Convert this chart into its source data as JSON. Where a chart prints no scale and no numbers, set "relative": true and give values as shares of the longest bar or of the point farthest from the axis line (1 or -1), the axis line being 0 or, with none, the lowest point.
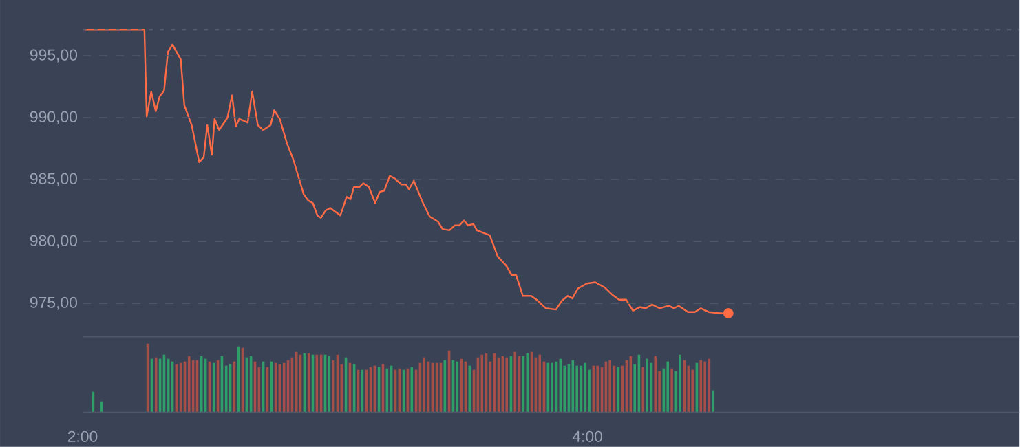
{
  "chart_data": [
    {
      "type": "line",
      "xlim": [
        2,
        5.711
      ],
      "ylim": [
        972.3,
        999.5
      ],
      "tick_labels": "y",
      "grid": "y",
      "yticks": [
        {
          "value": 975,
          "label": "975,00"
        },
        {
          "value": 980,
          "label": "980,00"
        },
        {
          "value": 985,
          "label": "985,00"
        },
        {
          "value": 990,
          "label": "990,00"
        },
        {
          "value": 995,
          "label": "995,00"
        }
      ],
      "ref_lines": [
        {
          "axis": "y",
          "value": 997.1,
          "color": "#5f6878",
          "line_style": "dotted"
        }
      ],
      "series": [
        {
          "color": "#ff6b45",
          "x": [
            2.009,
            2.245,
            2.254,
            2.272,
            2.29,
            2.305,
            2.323,
            2.338,
            2.356,
            2.389,
            2.403,
            2.432,
            2.462,
            2.48,
            2.494,
            2.512,
            2.523,
            2.541,
            2.574,
            2.592,
            2.607,
            2.621,
            2.654,
            2.672,
            2.694,
            2.716,
            2.745,
            2.759,
            2.781,
            2.81,
            2.835,
            2.876,
            2.894,
            2.912,
            2.93,
            2.944,
            2.963,
            2.981,
            3.021,
            3.046,
            3.061,
            3.075,
            3.097,
            3.112,
            3.134,
            3.159,
            3.177,
            3.195,
            3.217,
            3.235,
            3.263,
            3.281,
            3.293,
            3.312,
            3.344,
            3.375,
            3.408,
            3.426,
            3.453,
            3.475,
            3.493,
            3.511,
            3.526,
            3.548,
            3.562,
            3.613,
            3.644,
            3.68,
            3.699,
            3.717,
            3.744,
            3.777,
            3.798,
            3.835,
            3.875,
            3.898,
            3.922,
            3.94,
            3.962,
            3.998,
            4.031,
            4.067,
            4.098,
            4.125,
            4.153,
            4.18,
            4.207,
            4.231,
            4.256,
            4.285,
            4.322,
            4.343,
            4.361,
            4.398,
            4.425,
            4.449,
            4.48,
            4.525,
            4.558
          ],
          "values": [
            997.1,
            997.1,
            990.1,
            992.1,
            990.5,
            991.7,
            992.2,
            995.3,
            995.9,
            994.7,
            991.0,
            989.4,
            986.4,
            986.8,
            989.4,
            987.0,
            989.9,
            989.0,
            990.0,
            991.8,
            989.3,
            989.9,
            989.6,
            992.1,
            989.4,
            989.0,
            989.4,
            990.6,
            989.9,
            987.9,
            986.6,
            983.8,
            983.3,
            983.1,
            982.1,
            981.9,
            982.5,
            982.7,
            982.1,
            983.6,
            983.4,
            984.4,
            984.4,
            984.7,
            984.4,
            983.1,
            984.0,
            984.1,
            985.3,
            985.1,
            984.6,
            984.6,
            984.2,
            984.9,
            983.3,
            982.0,
            981.6,
            981.0,
            980.9,
            981.3,
            981.3,
            981.7,
            981.3,
            981.4,
            980.9,
            980.5,
            978.8,
            978.0,
            977.3,
            977.3,
            975.6,
            975.6,
            975.3,
            974.6,
            974.5,
            975.2,
            975.6,
            975.4,
            976.2,
            976.6,
            976.7,
            976.3,
            975.7,
            975.3,
            975.3,
            974.4,
            974.7,
            974.6,
            974.9,
            974.6,
            974.8,
            974.6,
            974.8,
            974.3,
            974.3,
            974.6,
            974.3,
            974.2,
            974.2
          ]
        },
        {
          "type": "scatter",
          "color": "#ff6b45",
          "x": [
            4.558
          ],
          "values": [
            974.2
          ]
        }
      ]
    },
    {
      "type": "bar",
      "relative": true,
      "xlim": [
        2,
        5.711
      ],
      "tick_labels": "x",
      "xticks": [
        {
          "value": 2,
          "label": "2:00"
        },
        {
          "value": 4,
          "label": "4:00"
        }
      ],
      "x": [
        2.042,
        2.075,
        2.258,
        2.274,
        2.291,
        2.307,
        2.323,
        2.34,
        2.356,
        2.372,
        2.389,
        2.405,
        2.422,
        2.438,
        2.454,
        2.471,
        2.487,
        2.503,
        2.52,
        2.536,
        2.552,
        2.569,
        2.585,
        2.601,
        2.618,
        2.634,
        2.65,
        2.667,
        2.683,
        2.699,
        2.716,
        2.732,
        2.749,
        2.765,
        2.781,
        2.798,
        2.814,
        2.83,
        2.847,
        2.863,
        2.879,
        2.896,
        2.912,
        2.928,
        2.945,
        2.961,
        2.977,
        2.994,
        3.01,
        3.026,
        3.043,
        3.059,
        3.076,
        3.092,
        3.108,
        3.125,
        3.141,
        3.157,
        3.174,
        3.19,
        3.206,
        3.223,
        3.239,
        3.255,
        3.272,
        3.288,
        3.304,
        3.321,
        3.337,
        3.353,
        3.37,
        3.386,
        3.403,
        3.419,
        3.435,
        3.452,
        3.468,
        3.484,
        3.501,
        3.517,
        3.533,
        3.55,
        3.566,
        3.582,
        3.599,
        3.615,
        3.631,
        3.648,
        3.664,
        3.68,
        3.697,
        3.713,
        3.73,
        3.746,
        3.762,
        3.779,
        3.795,
        3.811,
        3.828,
        3.844,
        3.86,
        3.877,
        3.893,
        3.909,
        3.926,
        3.942,
        3.958,
        3.975,
        3.991,
        4.007,
        4.024,
        4.04,
        4.057,
        4.073,
        4.089,
        4.106,
        4.122,
        4.138,
        4.155,
        4.171,
        4.187,
        4.204,
        4.22,
        4.236,
        4.253,
        4.269,
        4.285,
        4.302,
        4.318,
        4.334,
        4.351,
        4.367,
        4.384,
        4.4,
        4.416,
        4.433,
        4.449,
        4.465,
        4.482,
        4.498
      ],
      "values": [
        0.3,
        0.16,
        1,
        0.78,
        0.8,
        0.78,
        0.84,
        0.78,
        0.74,
        0.7,
        0.72,
        0.74,
        0.82,
        0.76,
        0.76,
        0.82,
        0.78,
        0.74,
        0.72,
        0.76,
        0.82,
        0.68,
        0.7,
        0.74,
        0.96,
        0.94,
        0.8,
        0.82,
        0.74,
        0.66,
        0.74,
        0.66,
        0.74,
        0.72,
        0.7,
        0.72,
        0.76,
        0.8,
        0.88,
        0.84,
        0.86,
        0.86,
        0.84,
        0.84,
        0.84,
        0.84,
        0.82,
        0.76,
        0.84,
        0.7,
        0.8,
        0.72,
        0.7,
        0.62,
        0.62,
        0.62,
        0.66,
        0.68,
        0.66,
        0.7,
        0.64,
        0.68,
        0.62,
        0.64,
        0.62,
        0.64,
        0.66,
        0.62,
        0.72,
        0.8,
        0.74,
        0.72,
        0.72,
        0.72,
        0.76,
        0.9,
        0.76,
        0.74,
        0.78,
        0.74,
        0.68,
        0.62,
        0.8,
        0.84,
        0.86,
        0.74,
        0.86,
        0.8,
        0.82,
        0.8,
        0.82,
        0.88,
        0.82,
        0.82,
        0.86,
        0.88,
        0.8,
        0.84,
        0.74,
        0.72,
        0.72,
        0.74,
        0.78,
        0.68,
        0.7,
        0.76,
        0.68,
        0.68,
        0.72,
        0.62,
        0.68,
        0.68,
        0.66,
        0.74,
        0.76,
        0.68,
        0.66,
        0.68,
        0.76,
        0.82,
        0.7,
        0.84,
        0.66,
        0.78,
        0.72,
        0.82,
        0.6,
        0.64,
        0.74,
        0.64,
        0.6,
        0.84,
        0.76,
        0.68,
        0.62,
        0.72,
        0.76,
        0.74,
        0.78,
        0.32
      ],
      "colors": [
        "#2f9e68",
        "#2f9e68",
        "#a54f48",
        "#2f9e68",
        "#a54f48",
        "#2f9e68",
        "#2f9e68",
        "#2f9e68",
        "#2f9e68",
        "#a54f48",
        "#a54f48",
        "#a54f48",
        "#a54f48",
        "#a54f48",
        "#a54f48",
        "#2f9e68",
        "#2f9e68",
        "#a54f48",
        "#2f9e68",
        "#a54f48",
        "#2f9e68",
        "#2f9e68",
        "#2f9e68",
        "#a54f48",
        "#2f9e68",
        "#a54f48",
        "#2f9e68",
        "#2f9e68",
        "#a54f48",
        "#a54f48",
        "#2f9e68",
        "#a54f48",
        "#2f9e68",
        "#a54f48",
        "#a54f48",
        "#a54f48",
        "#a54f48",
        "#a54f48",
        "#a54f48",
        "#a54f48",
        "#2f9e68",
        "#a54f48",
        "#2f9e68",
        "#a54f48",
        "#a54f48",
        "#2f9e68",
        "#2f9e68",
        "#a54f48",
        "#a54f48",
        "#a54f48",
        "#2f9e68",
        "#a54f48",
        "#2f9e68",
        "#a54f48",
        "#2f9e68",
        "#a54f48",
        "#a54f48",
        "#a54f48",
        "#2f9e68",
        "#a54f48",
        "#2f9e68",
        "#2f9e68",
        "#a54f48",
        "#a54f48",
        "#2f9e68",
        "#a54f48",
        "#2f9e68",
        "#a54f48",
        "#a54f48",
        "#a54f48",
        "#a54f48",
        "#a54f48",
        "#a54f48",
        "#a54f48",
        "#2f9e68",
        "#a54f48",
        "#2f9e68",
        "#2f9e68",
        "#a54f48",
        "#a54f48",
        "#2f9e68",
        "#a54f48",
        "#a54f48",
        "#a54f48",
        "#a54f48",
        "#a54f48",
        "#a54f48",
        "#a54f48",
        "#a54f48",
        "#a54f48",
        "#2f9e68",
        "#a54f48",
        "#a54f48",
        "#2f9e68",
        "#2f9e68",
        "#a54f48",
        "#a54f48",
        "#a54f48",
        "#a54f48",
        "#2f9e68",
        "#2f9e68",
        "#2f9e68",
        "#2f9e68",
        "#2f9e68",
        "#2f9e68",
        "#2f9e68",
        "#2f9e68",
        "#2f9e68",
        "#2f9e68",
        "#2f9e68",
        "#a54f48",
        "#a54f48",
        "#a54f48",
        "#a54f48",
        "#a54f48",
        "#a54f48",
        "#2f9e68",
        "#a54f48",
        "#a54f48",
        "#a54f48",
        "#2f9e68",
        "#2f9e68",
        "#a54f48",
        "#2f9e68",
        "#2f9e68",
        "#a54f48",
        "#a54f48",
        "#2f9e68",
        "#2f9e68",
        "#a54f48",
        "#2f9e68",
        "#2f9e68",
        "#a54f48",
        "#a54f48",
        "#a54f48",
        "#2f9e68",
        "#a54f48",
        "#a54f48",
        "#a54f48",
        "#2f9e68"
      ]
    }
  ]
}
